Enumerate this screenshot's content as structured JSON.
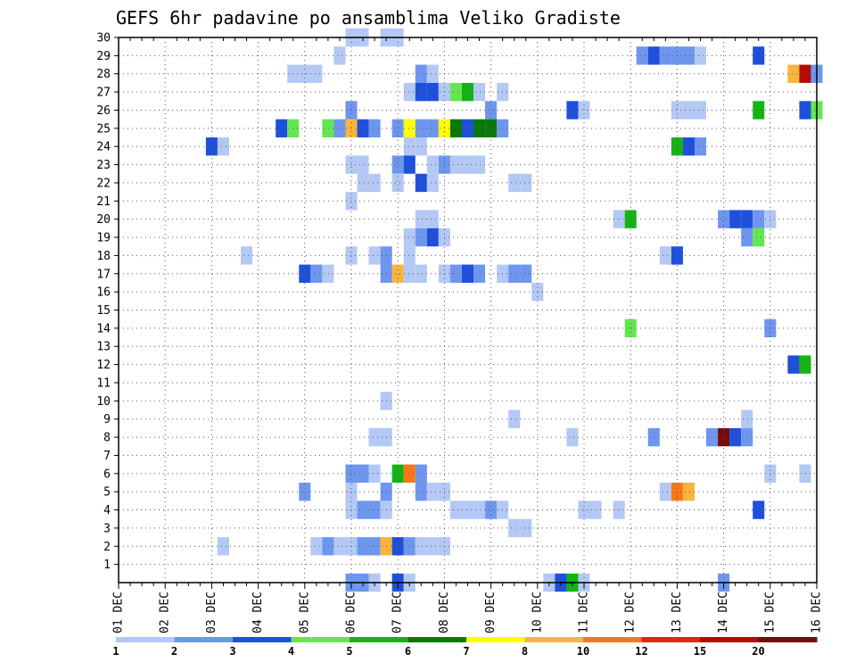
{
  "chart_data": {
    "type": "heatmap",
    "title": "GEFS 6hr padavine po ansamblima Veliko Gradiste",
    "xlabel": "",
    "ylabel": "",
    "x_tick_labels": [
      "01 DEC",
      "02 DEC",
      "03 DEC",
      "04 DEC",
      "05 DEC",
      "06 DEC",
      "07 DEC",
      "08 DEC",
      "09 DEC",
      "10 DEC",
      "11 DEC",
      "12 DEC",
      "13 DEC",
      "14 DEC",
      "15 DEC",
      "16 DEC"
    ],
    "y_tick_labels": [
      "1",
      "2",
      "3",
      "4",
      "5",
      "6",
      "7",
      "8",
      "9",
      "10",
      "11",
      "12",
      "13",
      "14",
      "15",
      "16",
      "17",
      "18",
      "19",
      "20",
      "21",
      "22",
      "23",
      "24",
      "25",
      "26",
      "27",
      "28",
      "29",
      "30"
    ],
    "x_range_steps": [
      0,
      60
    ],
    "y_range_members": [
      0,
      30
    ],
    "legend_labels": [
      "1",
      "2",
      "3",
      "4",
      "5",
      "6",
      "7",
      "8",
      "10",
      "12",
      "15",
      "20"
    ],
    "legend_colors": [
      "#b4c8f5",
      "#6e96ee",
      "#1e50dc",
      "#64e650",
      "#14b414",
      "#0a780a",
      "#ffff00",
      "#fab43c",
      "#fa7814",
      "#dc2814",
      "#b40a0a",
      "#780a0a"
    ],
    "cells": [
      {
        "m": 30,
        "t": 20,
        "v": 1.5
      },
      {
        "m": 30,
        "t": 21,
        "v": 1.5
      },
      {
        "m": 30,
        "t": 23,
        "v": 1
      },
      {
        "m": 30,
        "t": 24,
        "v": 1
      },
      {
        "m": 29,
        "t": 19,
        "v": 1
      },
      {
        "m": 29,
        "t": 45,
        "v": 2
      },
      {
        "m": 29,
        "t": 46,
        "v": 3
      },
      {
        "m": 29,
        "t": 47,
        "v": 2
      },
      {
        "m": 29,
        "t": 48,
        "v": 2
      },
      {
        "m": 29,
        "t": 49,
        "v": 2
      },
      {
        "m": 29,
        "t": 50,
        "v": 1
      },
      {
        "m": 29,
        "t": 55,
        "v": 3
      },
      {
        "m": 28,
        "t": 15,
        "v": 1
      },
      {
        "m": 28,
        "t": 16,
        "v": 1
      },
      {
        "m": 28,
        "t": 17,
        "v": 1
      },
      {
        "m": 28,
        "t": 26,
        "v": 2
      },
      {
        "m": 28,
        "t": 27,
        "v": 1
      },
      {
        "m": 28,
        "t": 58,
        "v": 8
      },
      {
        "m": 28,
        "t": 59,
        "v": 15
      },
      {
        "m": 28,
        "t": 60,
        "v": 2
      },
      {
        "m": 27,
        "t": 25,
        "v": 1
      },
      {
        "m": 27,
        "t": 26,
        "v": 3
      },
      {
        "m": 27,
        "t": 27,
        "v": 3
      },
      {
        "m": 27,
        "t": 28,
        "v": 1
      },
      {
        "m": 27,
        "t": 29,
        "v": 4
      },
      {
        "m": 27,
        "t": 30,
        "v": 5
      },
      {
        "m": 27,
        "t": 31,
        "v": 1
      },
      {
        "m": 27,
        "t": 33,
        "v": 1
      },
      {
        "m": 26,
        "t": 20,
        "v": 2
      },
      {
        "m": 26,
        "t": 32,
        "v": 2
      },
      {
        "m": 26,
        "t": 39,
        "v": 3
      },
      {
        "m": 26,
        "t": 40,
        "v": 1
      },
      {
        "m": 26,
        "t": 48,
        "v": 1
      },
      {
        "m": 26,
        "t": 49,
        "v": 1
      },
      {
        "m": 26,
        "t": 50,
        "v": 1
      },
      {
        "m": 26,
        "t": 55,
        "v": 5
      },
      {
        "m": 26,
        "t": 59,
        "v": 3
      },
      {
        "m": 26,
        "t": 60,
        "v": 4
      },
      {
        "m": 25,
        "t": 14,
        "v": 3
      },
      {
        "m": 25,
        "t": 15,
        "v": 4
      },
      {
        "m": 25,
        "t": 18,
        "v": 4
      },
      {
        "m": 25,
        "t": 19,
        "v": 2
      },
      {
        "m": 25,
        "t": 20,
        "v": 8
      },
      {
        "m": 25,
        "t": 21,
        "v": 3
      },
      {
        "m": 25,
        "t": 22,
        "v": 2
      },
      {
        "m": 25,
        "t": 24,
        "v": 2
      },
      {
        "m": 25,
        "t": 25,
        "v": 7
      },
      {
        "m": 25,
        "t": 26,
        "v": 2
      },
      {
        "m": 25,
        "t": 27,
        "v": 2
      },
      {
        "m": 25,
        "t": 28,
        "v": 7
      },
      {
        "m": 25,
        "t": 29,
        "v": 6
      },
      {
        "m": 25,
        "t": 30,
        "v": 3
      },
      {
        "m": 25,
        "t": 31,
        "v": 6
      },
      {
        "m": 25,
        "t": 32,
        "v": 6
      },
      {
        "m": 25,
        "t": 33,
        "v": 2
      },
      {
        "m": 24,
        "t": 8,
        "v": 3
      },
      {
        "m": 24,
        "t": 9,
        "v": 1
      },
      {
        "m": 24,
        "t": 25,
        "v": 1
      },
      {
        "m": 24,
        "t": 26,
        "v": 1
      },
      {
        "m": 24,
        "t": 48,
        "v": 5
      },
      {
        "m": 24,
        "t": 49,
        "v": 3
      },
      {
        "m": 24,
        "t": 50,
        "v": 2
      },
      {
        "m": 23,
        "t": 20,
        "v": 1
      },
      {
        "m": 23,
        "t": 21,
        "v": 1
      },
      {
        "m": 23,
        "t": 24,
        "v": 2
      },
      {
        "m": 23,
        "t": 25,
        "v": 3
      },
      {
        "m": 23,
        "t": 27,
        "v": 1
      },
      {
        "m": 23,
        "t": 28,
        "v": 2
      },
      {
        "m": 23,
        "t": 29,
        "v": 1
      },
      {
        "m": 23,
        "t": 30,
        "v": 1
      },
      {
        "m": 23,
        "t": 31,
        "v": 1
      },
      {
        "m": 22,
        "t": 21,
        "v": 1
      },
      {
        "m": 22,
        "t": 22,
        "v": 1
      },
      {
        "m": 22,
        "t": 24,
        "v": 1
      },
      {
        "m": 22,
        "t": 26,
        "v": 3
      },
      {
        "m": 22,
        "t": 27,
        "v": 1
      },
      {
        "m": 22,
        "t": 34,
        "v": 1
      },
      {
        "m": 22,
        "t": 35,
        "v": 1
      },
      {
        "m": 21,
        "t": 20,
        "v": 1
      },
      {
        "m": 20,
        "t": 26,
        "v": 1
      },
      {
        "m": 20,
        "t": 27,
        "v": 1
      },
      {
        "m": 20,
        "t": 43,
        "v": 1
      },
      {
        "m": 20,
        "t": 44,
        "v": 5
      },
      {
        "m": 20,
        "t": 52,
        "v": 2
      },
      {
        "m": 20,
        "t": 53,
        "v": 3
      },
      {
        "m": 20,
        "t": 54,
        "v": 3
      },
      {
        "m": 20,
        "t": 55,
        "v": 2
      },
      {
        "m": 20,
        "t": 56,
        "v": 1
      },
      {
        "m": 19,
        "t": 25,
        "v": 1
      },
      {
        "m": 19,
        "t": 26,
        "v": 2
      },
      {
        "m": 19,
        "t": 27,
        "v": 3
      },
      {
        "m": 19,
        "t": 28,
        "v": 1
      },
      {
        "m": 19,
        "t": 54,
        "v": 2
      },
      {
        "m": 19,
        "t": 55,
        "v": 4
      },
      {
        "m": 18,
        "t": 11,
        "v": 1
      },
      {
        "m": 18,
        "t": 20,
        "v": 1
      },
      {
        "m": 18,
        "t": 22,
        "v": 1
      },
      {
        "m": 18,
        "t": 23,
        "v": 2
      },
      {
        "m": 18,
        "t": 25,
        "v": 1
      },
      {
        "m": 18,
        "t": 47,
        "v": 1
      },
      {
        "m": 18,
        "t": 48,
        "v": 3
      },
      {
        "m": 17,
        "t": 16,
        "v": 3
      },
      {
        "m": 17,
        "t": 17,
        "v": 2
      },
      {
        "m": 17,
        "t": 18,
        "v": 1
      },
      {
        "m": 17,
        "t": 23,
        "v": 2
      },
      {
        "m": 17,
        "t": 24,
        "v": 8
      },
      {
        "m": 17,
        "t": 25,
        "v": 1
      },
      {
        "m": 17,
        "t": 26,
        "v": 1
      },
      {
        "m": 17,
        "t": 28,
        "v": 1
      },
      {
        "m": 17,
        "t": 29,
        "v": 2
      },
      {
        "m": 17,
        "t": 30,
        "v": 3
      },
      {
        "m": 17,
        "t": 31,
        "v": 2
      },
      {
        "m": 17,
        "t": 33,
        "v": 1
      },
      {
        "m": 17,
        "t": 34,
        "v": 2
      },
      {
        "m": 17,
        "t": 35,
        "v": 2
      },
      {
        "m": 16,
        "t": 36,
        "v": 1
      },
      {
        "m": 14,
        "t": 44,
        "v": 4
      },
      {
        "m": 14,
        "t": 56,
        "v": 2
      },
      {
        "m": 12,
        "t": 58,
        "v": 3
      },
      {
        "m": 12,
        "t": 59,
        "v": 5
      },
      {
        "m": 10,
        "t": 23,
        "v": 1
      },
      {
        "m": 9,
        "t": 34,
        "v": 1
      },
      {
        "m": 9,
        "t": 54,
        "v": 1
      },
      {
        "m": 8,
        "t": 22,
        "v": 1
      },
      {
        "m": 8,
        "t": 23,
        "v": 1
      },
      {
        "m": 8,
        "t": 39,
        "v": 1
      },
      {
        "m": 8,
        "t": 46,
        "v": 2
      },
      {
        "m": 8,
        "t": 51,
        "v": 2
      },
      {
        "m": 8,
        "t": 52,
        "v": 20
      },
      {
        "m": 8,
        "t": 53,
        "v": 3
      },
      {
        "m": 8,
        "t": 54,
        "v": 2
      },
      {
        "m": 6,
        "t": 20,
        "v": 2
      },
      {
        "m": 6,
        "t": 21,
        "v": 2
      },
      {
        "m": 6,
        "t": 22,
        "v": 1
      },
      {
        "m": 6,
        "t": 24,
        "v": 5
      },
      {
        "m": 6,
        "t": 25,
        "v": 10
      },
      {
        "m": 6,
        "t": 26,
        "v": 2
      },
      {
        "m": 6,
        "t": 56,
        "v": 1
      },
      {
        "m": 6,
        "t": 59,
        "v": 1
      },
      {
        "m": 5,
        "t": 16,
        "v": 2
      },
      {
        "m": 5,
        "t": 20,
        "v": 1
      },
      {
        "m": 5,
        "t": 23,
        "v": 2
      },
      {
        "m": 5,
        "t": 26,
        "v": 2
      },
      {
        "m": 5,
        "t": 27,
        "v": 1
      },
      {
        "m": 5,
        "t": 28,
        "v": 1
      },
      {
        "m": 5,
        "t": 47,
        "v": 1
      },
      {
        "m": 5,
        "t": 48,
        "v": 10
      },
      {
        "m": 5,
        "t": 49,
        "v": 8
      },
      {
        "m": 4,
        "t": 20,
        "v": 1
      },
      {
        "m": 4,
        "t": 21,
        "v": 2
      },
      {
        "m": 4,
        "t": 22,
        "v": 2
      },
      {
        "m": 4,
        "t": 23,
        "v": 1
      },
      {
        "m": 4,
        "t": 29,
        "v": 1
      },
      {
        "m": 4,
        "t": 30,
        "v": 1
      },
      {
        "m": 4,
        "t": 31,
        "v": 1
      },
      {
        "m": 4,
        "t": 32,
        "v": 2
      },
      {
        "m": 4,
        "t": 33,
        "v": 1
      },
      {
        "m": 4,
        "t": 40,
        "v": 1
      },
      {
        "m": 4,
        "t": 41,
        "v": 1
      },
      {
        "m": 4,
        "t": 43,
        "v": 1
      },
      {
        "m": 4,
        "t": 55,
        "v": 3
      },
      {
        "m": 3,
        "t": 34,
        "v": 1
      },
      {
        "m": 3,
        "t": 35,
        "v": 1
      },
      {
        "m": 2,
        "t": 9,
        "v": 1
      },
      {
        "m": 2,
        "t": 17,
        "v": 1
      },
      {
        "m": 2,
        "t": 18,
        "v": 2
      },
      {
        "m": 2,
        "t": 19,
        "v": 1
      },
      {
        "m": 2,
        "t": 20,
        "v": 1
      },
      {
        "m": 2,
        "t": 21,
        "v": 2
      },
      {
        "m": 2,
        "t": 22,
        "v": 2
      },
      {
        "m": 2,
        "t": 23,
        "v": 8
      },
      {
        "m": 2,
        "t": 24,
        "v": 3
      },
      {
        "m": 2,
        "t": 25,
        "v": 2
      },
      {
        "m": 2,
        "t": 26,
        "v": 1
      },
      {
        "m": 2,
        "t": 27,
        "v": 1
      },
      {
        "m": 2,
        "t": 28,
        "v": 1
      },
      {
        "m": 0,
        "t": 20,
        "v": 2
      },
      {
        "m": 0,
        "t": 21,
        "v": 2
      },
      {
        "m": 0,
        "t": 22,
        "v": 1
      },
      {
        "m": 0,
        "t": 24,
        "v": 3
      },
      {
        "m": 0,
        "t": 25,
        "v": 1
      },
      {
        "m": 0,
        "t": 37,
        "v": 1
      },
      {
        "m": 0,
        "t": 38,
        "v": 3
      },
      {
        "m": 0,
        "t": 39,
        "v": 5
      },
      {
        "m": 0,
        "t": 40,
        "v": 1
      },
      {
        "m": 0,
        "t": 52,
        "v": 2
      }
    ]
  }
}
